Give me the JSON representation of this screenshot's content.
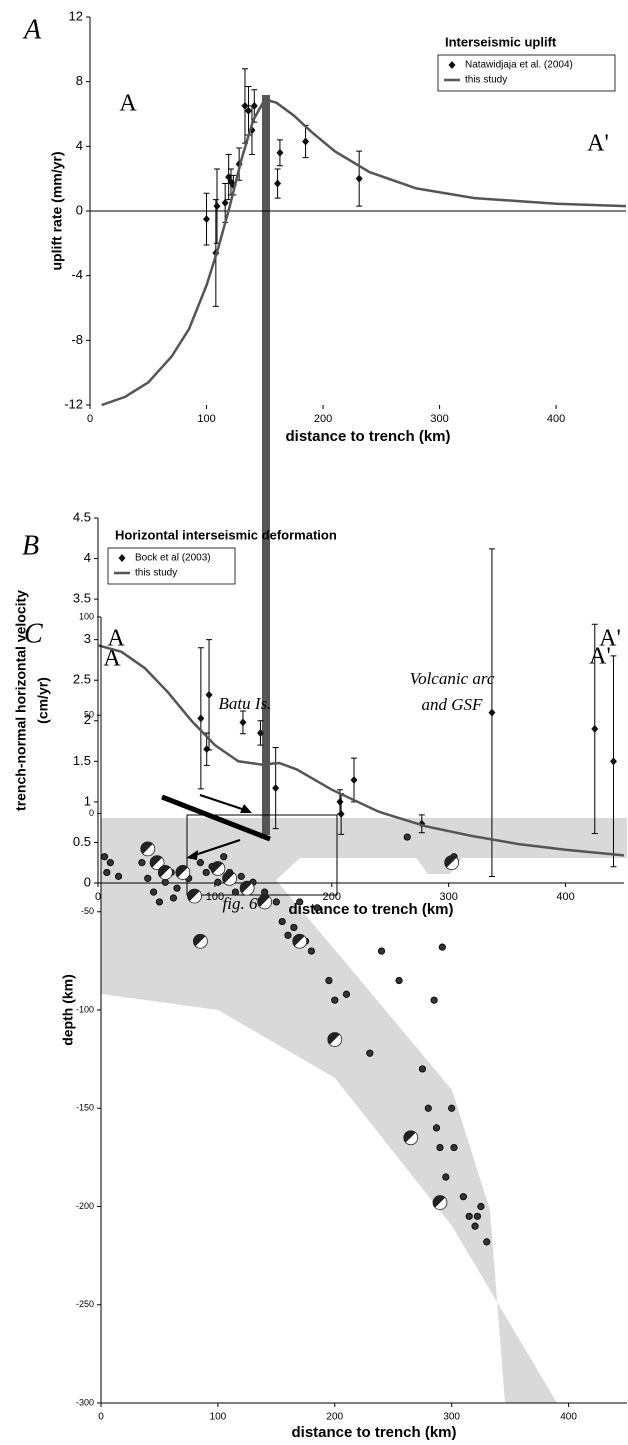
{
  "chart_data": [
    {
      "type": "line",
      "panel": "A",
      "left_label": "A",
      "right_label": "A'",
      "title": "Interseismic uplift",
      "xlabel": "distance to trench (km)",
      "ylabel": "uplift rate (mm/yr)",
      "xlim": [
        0,
        460
      ],
      "ylim": [
        -12,
        12
      ],
      "xticks": [
        0,
        100,
        200,
        300,
        400
      ],
      "yticks": [
        -12,
        -8,
        -4,
        0,
        4,
        8,
        12
      ],
      "zero_line": true,
      "legend": "upper right",
      "series": [
        {
          "name": "Natawidjaja et al. (2004)",
          "color": "#111111",
          "mode": "markers",
          "x": [
            100,
            109,
            108,
            116,
            119,
            121,
            123,
            128,
            133,
            136,
            139,
            141,
            161,
            163,
            185,
            231
          ],
          "values": [
            -0.5,
            0.3,
            -2.6,
            0.5,
            2.1,
            1.8,
            1.6,
            2.9,
            6.5,
            6.2,
            5.0,
            6.5,
            1.7,
            3.6,
            4.3,
            2.0
          ],
          "errors": [
            1.6,
            2.3,
            3.3,
            1.2,
            1.4,
            0.8,
            0.6,
            1.0,
            2.3,
            1.5,
            1.5,
            1.0,
            0.9,
            0.8,
            1.0,
            1.7
          ]
        },
        {
          "name": "this study",
          "color": "#555555",
          "mode": "line",
          "x": [
            10,
            30,
            50,
            70,
            85,
            100,
            110,
            120,
            130,
            140,
            150,
            160,
            175,
            190,
            210,
            240,
            280,
            330,
            400,
            460
          ],
          "values": [
            -12,
            -11.5,
            -10.6,
            -9,
            -7.3,
            -4.6,
            -2.3,
            0.3,
            3.2,
            5.6,
            6.9,
            6.7,
            5.9,
            4.9,
            3.7,
            2.4,
            1.4,
            0.8,
            0.45,
            0.3
          ]
        }
      ]
    },
    {
      "type": "line",
      "panel": "B",
      "left_label": "A",
      "right_label": "A'",
      "title": "Horizontal interseismic deformation",
      "xlabel": "distance to trench (km)",
      "ylabel": [
        "trench-normal horizontal velocity",
        "(cm/yr)"
      ],
      "xlim": [
        0,
        450
      ],
      "ylim": [
        0,
        4.5
      ],
      "xticks": [
        0,
        100,
        200,
        300,
        400
      ],
      "yticks": [
        0,
        0.5,
        1,
        1.5,
        2,
        2.5,
        3,
        3.5,
        4,
        4.5
      ],
      "zero_line": false,
      "legend": "upper left",
      "series": [
        {
          "name": "Bock et al (2003)",
          "color": "#111111",
          "mode": "markers",
          "x": [
            88,
            93,
            95,
            124,
            139,
            152,
            207,
            208,
            219,
            277,
            337,
            425,
            441
          ],
          "values": [
            2.03,
            1.65,
            2.32,
            1.98,
            1.85,
            1.17,
            1.0,
            0.85,
            1.27,
            0.73,
            2.1,
            1.9,
            1.5
          ],
          "errors": [
            0.87,
            0.2,
            0.68,
            0.14,
            0.15,
            0.5,
            0.15,
            0.25,
            0.27,
            0.11,
            2.02,
            1.29,
            1.3
          ]
        },
        {
          "name": "this study",
          "color": "#555555",
          "mode": "line",
          "x": [
            0,
            20,
            40,
            60,
            80,
            100,
            120,
            140,
            155,
            170,
            200,
            240,
            280,
            320,
            360,
            400,
            450
          ],
          "values": [
            2.93,
            2.85,
            2.65,
            2.35,
            2.0,
            1.7,
            1.5,
            1.46,
            1.48,
            1.4,
            1.15,
            0.88,
            0.7,
            0.58,
            0.48,
            0.41,
            0.34
          ]
        }
      ]
    },
    {
      "type": "scatter",
      "panel": "C",
      "left_label": "A",
      "right_label": "A'",
      "xlabel": "distance to trench (km)",
      "ylabel": "depth (km)",
      "annotations": [
        "Batu Is.",
        "Volcanic arc",
        "and GSF",
        "fig. 6"
      ],
      "xlim": [
        0,
        450
      ],
      "ylim": [
        -300,
        100
      ],
      "xticks": [
        0,
        100,
        200,
        300,
        400
      ],
      "yticks": [
        100,
        50,
        0,
        -50,
        -100,
        -150,
        -200,
        -250,
        -300
      ],
      "zero_line": false,
      "series": [
        {
          "color": "#333333",
          "mode": "dots",
          "x": [
            3,
            8,
            5,
            15,
            35,
            40,
            45,
            50,
            55,
            60,
            62,
            65,
            70,
            75,
            80,
            85,
            90,
            95,
            100,
            105,
            110,
            115,
            120,
            130,
            140,
            150,
            155,
            160,
            165,
            170,
            175,
            180,
            185,
            195,
            200,
            210,
            230,
            240,
            255,
            262,
            275,
            280,
            285,
            287,
            290,
            292,
            295,
            300,
            302,
            310,
            315,
            320,
            322,
            325,
            330,
            302
          ],
          "values": [
            -22,
            -25,
            -30,
            -32,
            -25,
            -33,
            -40,
            -45,
            -35,
            -30,
            -43,
            -38,
            -28,
            -33,
            -42,
            -25,
            -30,
            -27,
            -35,
            -22,
            -30,
            -40,
            -32,
            -35,
            -40,
            -45,
            -55,
            -62,
            -58,
            -45,
            -65,
            -70,
            -48,
            -85,
            -95,
            -92,
            -122,
            -70,
            -85,
            -12,
            -130,
            -150,
            -95,
            -160,
            -170,
            -68,
            -185,
            -150,
            -170,
            -195,
            -205,
            -210,
            -205,
            -200,
            -218,
            -22
          ]
        },
        {
          "color": "#222222",
          "mode": "mechanisms",
          "x": [
            40,
            48,
            55,
            70,
            80,
            85,
            100,
            110,
            125,
            140,
            170,
            200,
            265,
            290,
            300
          ],
          "values": [
            -18,
            -25,
            -30,
            -30,
            -42,
            -65,
            -28,
            -33,
            -38,
            -45,
            -65,
            -115,
            -165,
            -198,
            -25
          ]
        }
      ]
    }
  ]
}
